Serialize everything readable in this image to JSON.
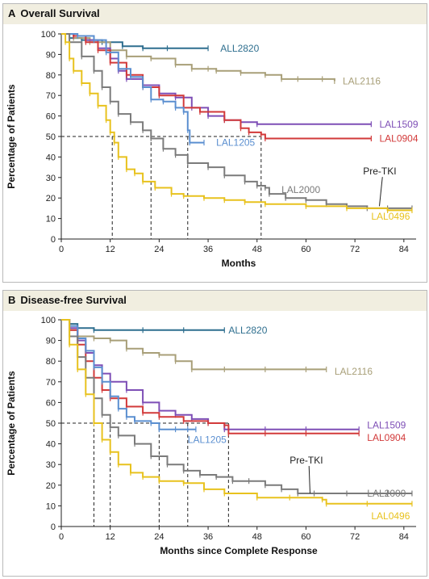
{
  "chart_data": [
    {
      "type": "line",
      "panel_letter": "A",
      "title": "Overall Survival",
      "xlabel": "Months",
      "ylabel": "Percentage of Patients",
      "xlim": [
        0,
        87
      ],
      "ylim": [
        0,
        100
      ],
      "xticks": [
        0,
        12,
        24,
        36,
        48,
        60,
        72,
        84
      ],
      "yticks": [
        0,
        10,
        20,
        30,
        40,
        50,
        60,
        70,
        80,
        90,
        100
      ],
      "grid": false,
      "median_markers": [
        {
          "x": 12.5,
          "y": 50
        },
        {
          "x": 22,
          "y": 50
        },
        {
          "x": 31,
          "y": 50
        },
        {
          "x": 49,
          "y": 50
        }
      ],
      "series": [
        {
          "name": "ALL2820",
          "color": "#2f6f8f",
          "label_at": [
            39,
            93
          ],
          "points": [
            [
              0,
              100
            ],
            [
              2,
              98
            ],
            [
              5,
              97
            ],
            [
              10,
              96
            ],
            [
              15,
              94
            ],
            [
              20,
              93
            ],
            [
              26,
              93
            ],
            [
              36,
              93
            ]
          ]
        },
        {
          "name": "LAL2116",
          "color": "#a89f78",
          "label_at": [
            69,
            77
          ],
          "points": [
            [
              0,
              100
            ],
            [
              3,
              98
            ],
            [
              7,
              96
            ],
            [
              12,
              92
            ],
            [
              16,
              89
            ],
            [
              22,
              88
            ],
            [
              28,
              85
            ],
            [
              32,
              83
            ],
            [
              36,
              83
            ],
            [
              38,
              82
            ],
            [
              44,
              81
            ],
            [
              50,
              80
            ],
            [
              54,
              78
            ],
            [
              58,
              78
            ],
            [
              64,
              78
            ],
            [
              67,
              77
            ]
          ]
        },
        {
          "name": "LAL1509",
          "color": "#7e4fb6",
          "label_at": [
            78,
            56
          ],
          "points": [
            [
              0,
              100
            ],
            [
              3,
              99
            ],
            [
              6,
              97
            ],
            [
              9,
              93
            ],
            [
              12,
              88
            ],
            [
              14,
              82
            ],
            [
              16,
              78
            ],
            [
              20,
              75
            ],
            [
              24,
              71
            ],
            [
              28,
              69
            ],
            [
              32,
              64
            ],
            [
              36,
              60
            ],
            [
              40,
              58
            ],
            [
              44,
              57
            ],
            [
              48,
              56
            ],
            [
              76,
              56
            ]
          ]
        },
        {
          "name": "LAL0904",
          "color": "#d23a3a",
          "label_at": [
            78,
            49
          ],
          "points": [
            [
              0,
              100
            ],
            [
              3,
              99
            ],
            [
              6,
              96
            ],
            [
              9,
              92
            ],
            [
              12,
              86
            ],
            [
              16,
              80
            ],
            [
              20,
              74
            ],
            [
              24,
              70
            ],
            [
              30,
              64
            ],
            [
              34,
              62
            ],
            [
              40,
              58
            ],
            [
              44,
              54
            ],
            [
              46,
              52
            ],
            [
              49,
              51
            ],
            [
              50,
              49
            ],
            [
              76,
              49
            ]
          ]
        },
        {
          "name": "LAL1205",
          "color": "#5b8fd0",
          "label_at": [
            38,
            47
          ],
          "points": [
            [
              0,
              100
            ],
            [
              4,
              99
            ],
            [
              8,
              97
            ],
            [
              11,
              91
            ],
            [
              14,
              83
            ],
            [
              17,
              79
            ],
            [
              20,
              74
            ],
            [
              22,
              68
            ],
            [
              25,
              67
            ],
            [
              28,
              64
            ],
            [
              30,
              62
            ],
            [
              31,
              53
            ],
            [
              31.5,
              47
            ],
            [
              35,
              47
            ]
          ]
        },
        {
          "name": "LAL2000",
          "color": "#7b7b7b",
          "label_at": [
            54,
            24
          ],
          "points": [
            [
              0,
              100
            ],
            [
              2,
              96
            ],
            [
              5,
              89
            ],
            [
              8,
              82
            ],
            [
              10,
              74
            ],
            [
              12,
              67
            ],
            [
              14,
              61
            ],
            [
              17,
              57
            ],
            [
              20,
              53
            ],
            [
              22,
              49
            ],
            [
              25,
              44
            ],
            [
              28,
              41
            ],
            [
              31,
              37
            ],
            [
              36,
              35
            ],
            [
              40,
              31
            ],
            [
              45,
              28
            ],
            [
              48,
              26
            ],
            [
              50,
              25
            ],
            [
              51,
              22
            ],
            [
              55,
              20
            ],
            [
              60,
              19
            ],
            [
              65,
              17
            ],
            [
              70,
              16
            ],
            [
              75,
              15
            ],
            [
              80,
              15
            ],
            [
              86,
              15
            ]
          ]
        },
        {
          "name": "LAL0496",
          "color": "#e8c21e",
          "label_at": [
            76,
            11
          ],
          "points": [
            [
              0,
              100
            ],
            [
              1,
              96
            ],
            [
              2,
              88
            ],
            [
              3,
              82
            ],
            [
              5,
              76
            ],
            [
              7,
              71
            ],
            [
              9,
              65
            ],
            [
              11,
              58
            ],
            [
              12,
              52
            ],
            [
              13,
              47
            ],
            [
              14,
              40
            ],
            [
              16,
              34
            ],
            [
              18,
              32
            ],
            [
              20,
              28
            ],
            [
              23,
              25
            ],
            [
              27,
              22
            ],
            [
              30,
              21
            ],
            [
              35,
              20
            ],
            [
              40,
              19
            ],
            [
              45,
              18
            ],
            [
              50,
              17
            ],
            [
              60,
              16
            ],
            [
              70,
              15
            ],
            [
              80,
              14
            ],
            [
              86,
              14
            ]
          ]
        }
      ],
      "callout": {
        "text": "Pre-TKI",
        "label_at": [
          74,
          33
        ],
        "arrow_to": [
          78,
          16
        ]
      }
    },
    {
      "type": "line",
      "panel_letter": "B",
      "title": "Disease-free Survival",
      "xlabel": "Months since Complete Response",
      "ylabel": "Percentage of Patients",
      "xlim": [
        0,
        87
      ],
      "ylim": [
        0,
        100
      ],
      "xticks": [
        0,
        12,
        24,
        36,
        48,
        60,
        72,
        84
      ],
      "yticks": [
        0,
        10,
        20,
        30,
        40,
        50,
        60,
        70,
        80,
        90,
        100
      ],
      "grid": false,
      "median_markers": [
        {
          "x": 8,
          "y": 50
        },
        {
          "x": 12,
          "y": 50
        },
        {
          "x": 24,
          "y": 50
        },
        {
          "x": 31,
          "y": 50
        },
        {
          "x": 41,
          "y": 50
        }
      ],
      "series": [
        {
          "name": "ALL2820",
          "color": "#2f6f8f",
          "label_at": [
            41,
            95
          ],
          "points": [
            [
              0,
              100
            ],
            [
              2,
              98
            ],
            [
              4,
              96
            ],
            [
              8,
              95
            ],
            [
              20,
              95
            ],
            [
              30,
              95
            ],
            [
              40,
              95
            ]
          ]
        },
        {
          "name": "LAL2116",
          "color": "#a89f78",
          "label_at": [
            67,
            75
          ],
          "points": [
            [
              0,
              100
            ],
            [
              2,
              95
            ],
            [
              4,
              92
            ],
            [
              8,
              91
            ],
            [
              12,
              90
            ],
            [
              16,
              86
            ],
            [
              20,
              84
            ],
            [
              24,
              83
            ],
            [
              28,
              80
            ],
            [
              32,
              76
            ],
            [
              40,
              76
            ],
            [
              50,
              76
            ],
            [
              60,
              76
            ],
            [
              65,
              76
            ]
          ]
        },
        {
          "name": "LAL1509",
          "color": "#7e4fb6",
          "label_at": [
            75,
            49
          ],
          "points": [
            [
              0,
              100
            ],
            [
              2,
              96
            ],
            [
              4,
              90
            ],
            [
              6,
              84
            ],
            [
              8,
              78
            ],
            [
              10,
              74
            ],
            [
              12,
              70
            ],
            [
              16,
              66
            ],
            [
              20,
              60
            ],
            [
              24,
              56
            ],
            [
              28,
              54
            ],
            [
              32,
              52
            ],
            [
              36,
              50
            ],
            [
              40,
              47
            ],
            [
              50,
              47
            ],
            [
              60,
              47
            ],
            [
              73,
              47
            ]
          ]
        },
        {
          "name": "LAL0904",
          "color": "#d23a3a",
          "label_at": [
            75,
            43
          ],
          "points": [
            [
              0,
              100
            ],
            [
              2,
              95
            ],
            [
              4,
              88
            ],
            [
              6,
              80
            ],
            [
              8,
              72
            ],
            [
              10,
              66
            ],
            [
              12,
              62
            ],
            [
              16,
              58
            ],
            [
              20,
              55
            ],
            [
              24,
              53
            ],
            [
              30,
              51
            ],
            [
              36,
              50
            ],
            [
              40,
              49
            ],
            [
              41,
              45
            ],
            [
              50,
              45
            ],
            [
              60,
              45
            ],
            [
              73,
              45
            ]
          ]
        },
        {
          "name": "LAL1205",
          "color": "#5b8fd0",
          "label_at": [
            31,
            42
          ],
          "points": [
            [
              0,
              100
            ],
            [
              2,
              97
            ],
            [
              4,
              91
            ],
            [
              6,
              85
            ],
            [
              8,
              77
            ],
            [
              10,
              70
            ],
            [
              12,
              63
            ],
            [
              14,
              57
            ],
            [
              16,
              53
            ],
            [
              18,
              51
            ],
            [
              22,
              50
            ],
            [
              24,
              47
            ],
            [
              28,
              47
            ],
            [
              31,
              47
            ],
            [
              33,
              47
            ]
          ]
        },
        {
          "name": "LAL2000",
          "color": "#7b7b7b",
          "label_at": [
            75,
            16
          ],
          "points": [
            [
              0,
              100
            ],
            [
              2,
              92
            ],
            [
              4,
              82
            ],
            [
              6,
              72
            ],
            [
              8,
              62
            ],
            [
              10,
              54
            ],
            [
              12,
              48
            ],
            [
              14,
              44
            ],
            [
              18,
              40
            ],
            [
              22,
              34
            ],
            [
              26,
              30
            ],
            [
              30,
              27
            ],
            [
              34,
              25
            ],
            [
              38,
              24
            ],
            [
              42,
              22
            ],
            [
              46,
              22
            ],
            [
              50,
              20
            ],
            [
              54,
              18
            ],
            [
              58,
              16
            ],
            [
              62,
              16
            ],
            [
              70,
              16
            ],
            [
              80,
              16
            ],
            [
              86,
              16
            ]
          ]
        },
        {
          "name": "LAL0496",
          "color": "#e8c21e",
          "label_at": [
            76,
            5
          ],
          "points": [
            [
              0,
              100
            ],
            [
              2,
              88
            ],
            [
              4,
              76
            ],
            [
              6,
              64
            ],
            [
              8,
              50
            ],
            [
              10,
              42
            ],
            [
              12,
              36
            ],
            [
              14,
              30
            ],
            [
              17,
              26
            ],
            [
              20,
              24
            ],
            [
              24,
              22
            ],
            [
              30,
              21
            ],
            [
              35,
              18
            ],
            [
              40,
              16
            ],
            [
              48,
              14
            ],
            [
              56,
              14
            ],
            [
              64,
              13
            ],
            [
              65,
              11
            ],
            [
              75,
              11
            ],
            [
              86,
              11
            ]
          ]
        }
      ],
      "callout": {
        "text": "Pre-TKI",
        "label_at": [
          56,
          32
        ],
        "arrow_to": [
          61,
          16
        ]
      }
    }
  ]
}
